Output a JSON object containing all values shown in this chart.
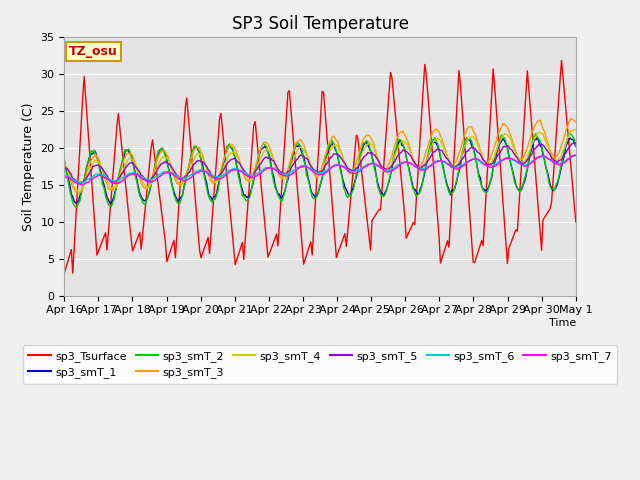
{
  "title": "SP3 Soil Temperature",
  "ylabel": "Soil Temperature (C)",
  "xlabel": "Time",
  "tz_label": "TZ_osu",
  "ylim": [
    0,
    35
  ],
  "xtick_labels": [
    "Apr 16",
    "Apr 17",
    "Apr 18",
    "Apr 19",
    "Apr 20",
    "Apr 21",
    "Apr 22",
    "Apr 23",
    "Apr 24",
    "Apr 25",
    "Apr 26",
    "Apr 27",
    "Apr 28",
    "Apr 29",
    "Apr 30",
    "May 1"
  ],
  "series_colors": {
    "sp3_Tsurface": "#ff0000",
    "sp3_smT_1": "#0000cc",
    "sp3_smT_2": "#00cc00",
    "sp3_smT_3": "#ff9900",
    "sp3_smT_4": "#cccc00",
    "sp3_smT_5": "#9900cc",
    "sp3_smT_6": "#00cccc",
    "sp3_smT_7": "#ff00ff"
  },
  "title_fontsize": 12,
  "legend_fontsize": 8,
  "tick_fontsize": 8,
  "figsize": [
    6.4,
    4.8
  ],
  "dpi": 100
}
